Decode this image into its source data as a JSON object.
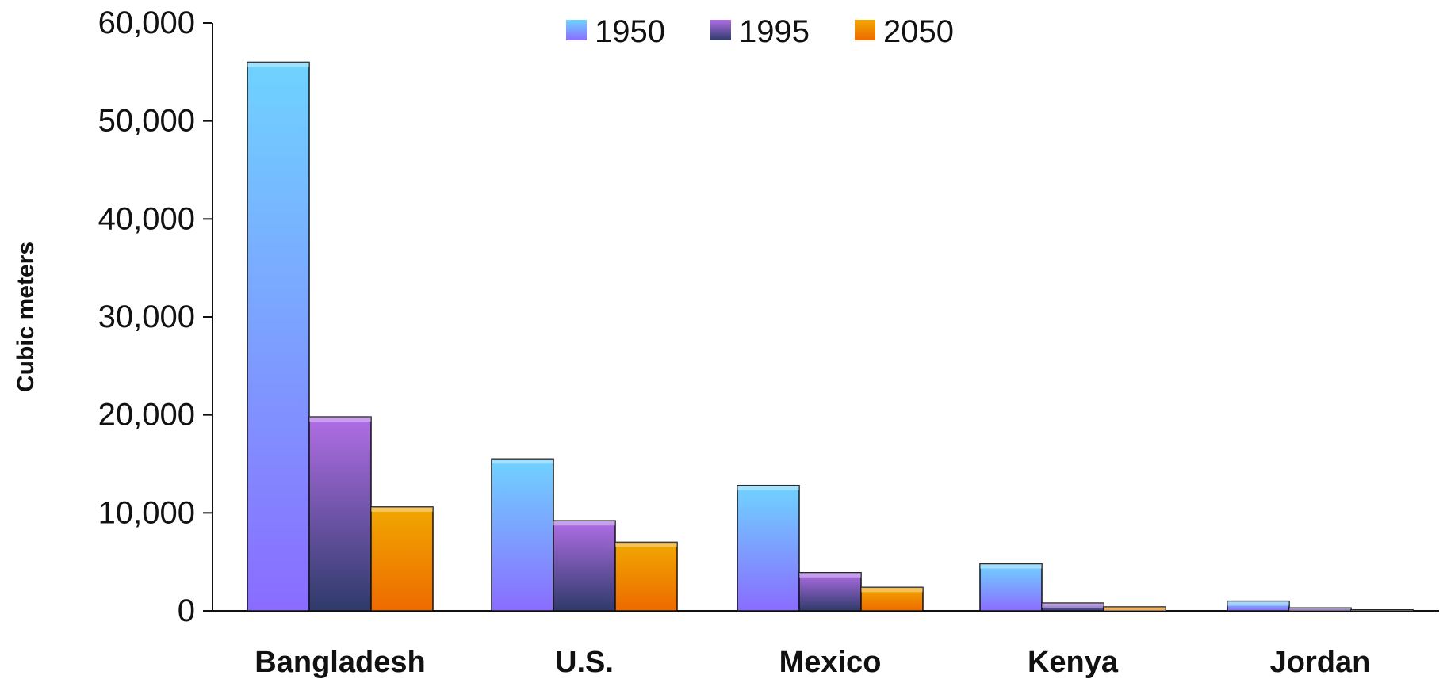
{
  "chart_data": {
    "type": "bar",
    "title": "",
    "xlabel": "",
    "ylabel": "Cubic meters",
    "categories": [
      "Bangladesh",
      "U.S.",
      "Mexico",
      "Kenya",
      "Jordan"
    ],
    "series": [
      {
        "name": "1950",
        "values": [
          56000,
          15500,
          12800,
          4800,
          1000
        ],
        "color": "#6fcbff"
      },
      {
        "name": "1995",
        "values": [
          19800,
          9200,
          3900,
          800,
          300
        ],
        "color": "#a565e0"
      },
      {
        "name": "2050",
        "values": [
          10600,
          7000,
          2400,
          400,
          100
        ],
        "color": "#f2a300"
      }
    ],
    "ylim": [
      0,
      60000
    ],
    "yticks": [
      "0",
      "10,000",
      "20,000",
      "30,000",
      "40,000",
      "50,000",
      "60,000"
    ],
    "grid": false,
    "legend_position": "top-center"
  }
}
